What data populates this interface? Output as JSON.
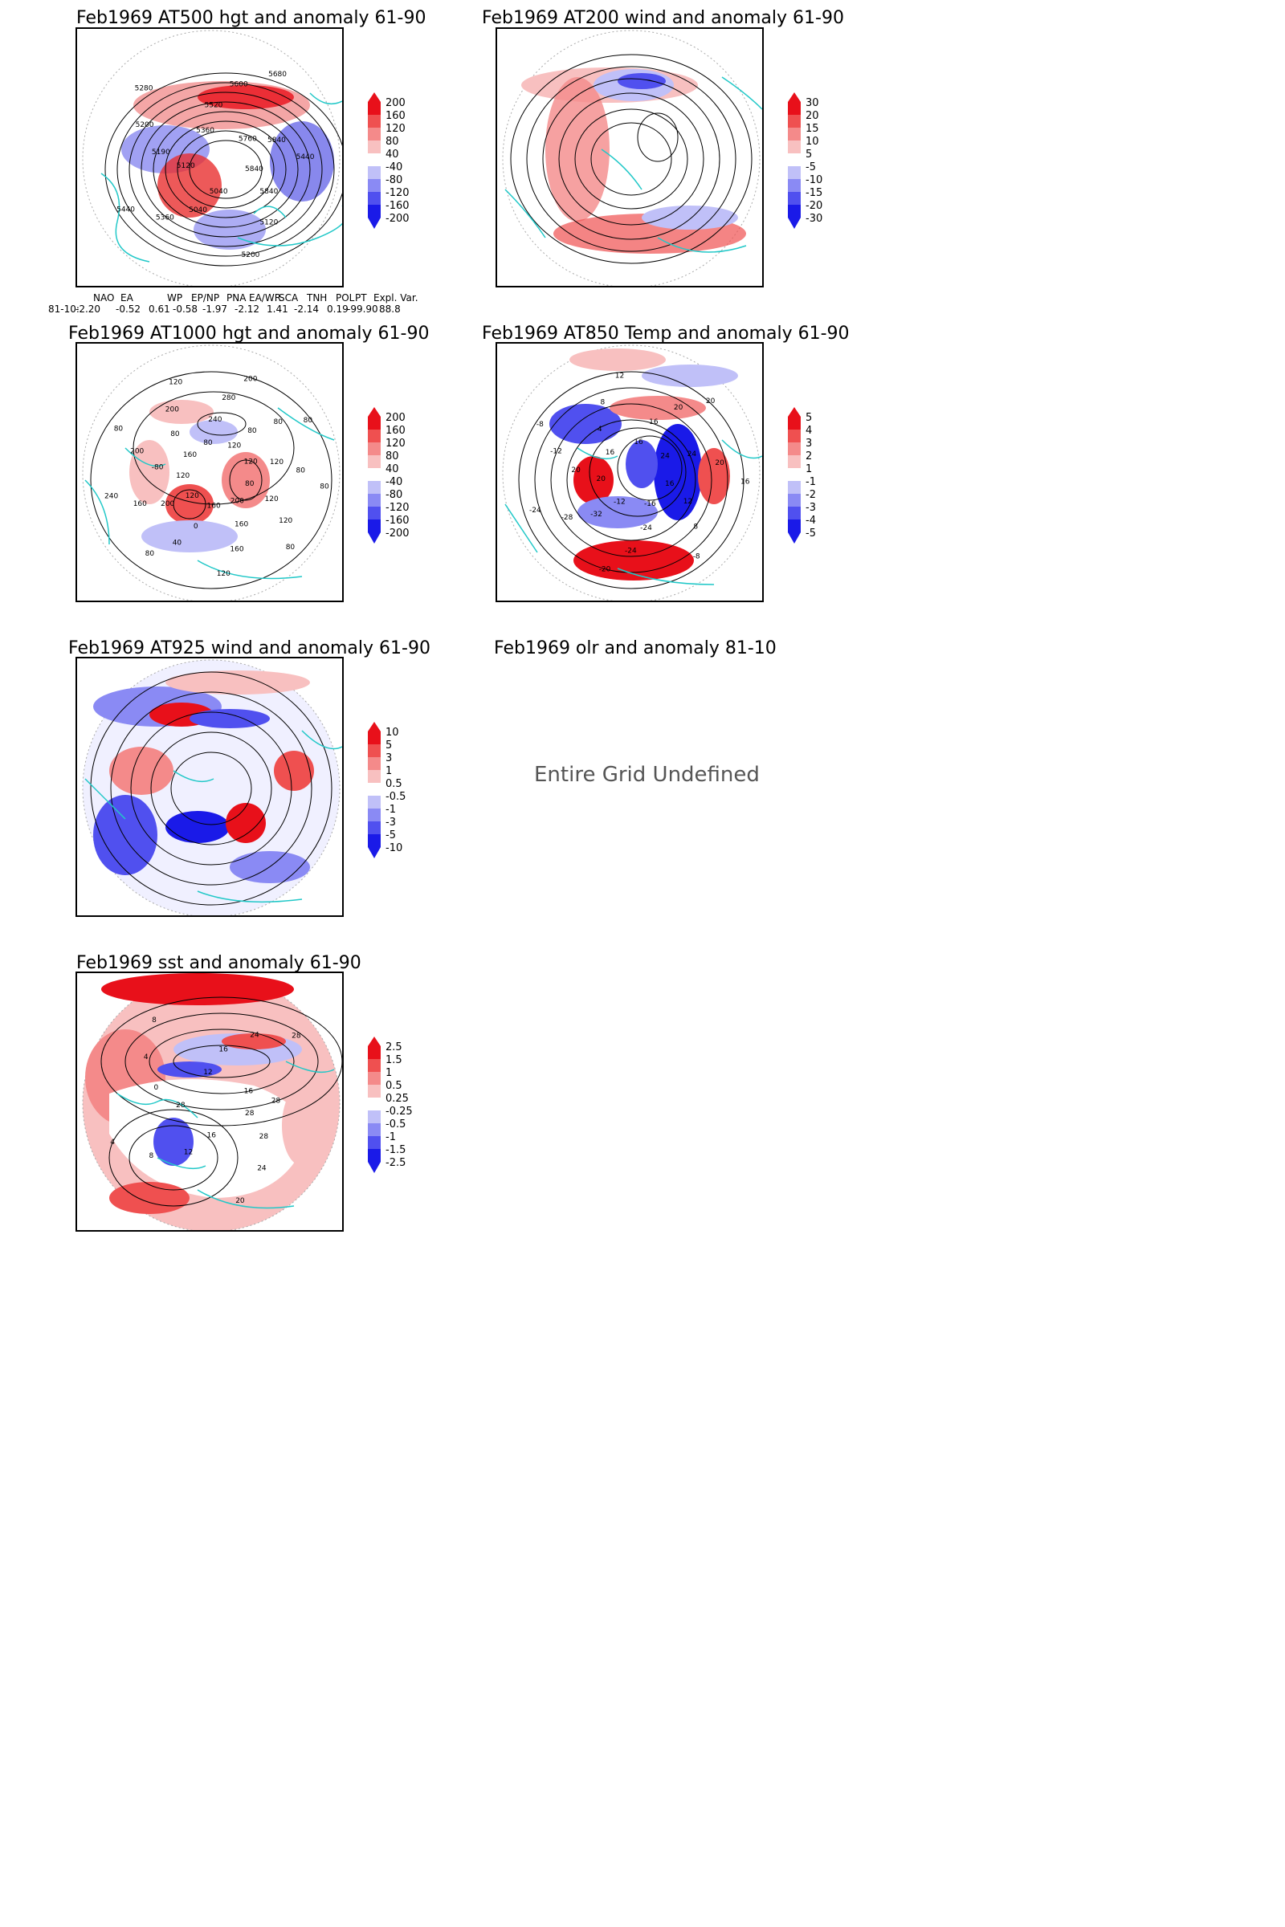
{
  "panels": [
    {
      "id": "p1",
      "title": "Feb1969 AT500 hgt and anomaly 61-90",
      "colorbar": [
        "200",
        "160",
        "120",
        "80",
        "40",
        "-40",
        "-80",
        "-120",
        "-160",
        "-200"
      ],
      "contour_labels": [
        "5840",
        "5840",
        "5120",
        "5200",
        "5040",
        "5040",
        "5360",
        "5440",
        "5120",
        "5190",
        "5200",
        "5280",
        "5360",
        "5520",
        "5600",
        "5680",
        "5760",
        "5840",
        "5440"
      ]
    },
    {
      "id": "p2",
      "title": "Feb1969 AT200 wind and anomaly 61-90",
      "colorbar": [
        "30",
        "20",
        "15",
        "10",
        "5",
        "-5",
        "-10",
        "-15",
        "-20",
        "-30"
      ],
      "contour_labels": []
    },
    {
      "id": "p3",
      "title": "Feb1969 AT1000 hgt and anomaly 61-90",
      "colorbar": [
        "200",
        "160",
        "120",
        "80",
        "40",
        "-40",
        "-80",
        "-120",
        "-160",
        "-200"
      ],
      "contour_labels": [
        "80",
        "120",
        "120",
        "80",
        "200",
        "160",
        "160",
        "120",
        "160",
        "0",
        "40",
        "80",
        "120",
        "200",
        "160",
        "240",
        "120",
        "-80",
        "200",
        "80",
        "160",
        "80",
        "200",
        "120",
        "80",
        "240",
        "280",
        "200",
        "120",
        "80",
        "80",
        "80",
        "120",
        "120",
        "80",
        "80"
      ]
    },
    {
      "id": "p4",
      "title": "Feb1969 AT850 Temp and anomaly 61-90",
      "colorbar": [
        "5",
        "4",
        "3",
        "2",
        "1",
        "-1",
        "-2",
        "-3",
        "-4",
        "-5"
      ],
      "contour_labels": [
        "16",
        "12",
        "8",
        "-8",
        "-16",
        "-24",
        "-24",
        "-20",
        "-12",
        "-32",
        "-28",
        "-24",
        "20",
        "20",
        "-12",
        "-8",
        "16",
        "4",
        "8",
        "12",
        "16",
        "16",
        "20",
        "20",
        "24",
        "24",
        "20",
        "16"
      ]
    },
    {
      "id": "p5",
      "title": "Feb1969 AT925 wind and anomaly 61-90",
      "colorbar": [
        "10",
        "5",
        "3",
        "1",
        "0.5",
        "-0.5",
        "-1",
        "-3",
        "-5",
        "-10"
      ],
      "contour_labels": []
    },
    {
      "id": "p6",
      "title": "Feb1969 olr and anomaly 81-10",
      "message": "Entire Grid Undefined"
    },
    {
      "id": "p7",
      "title": "Feb1969 sst and anomaly 61-90",
      "colorbar": [
        "2.5",
        "1.5",
        "1",
        "0.5",
        "0.25",
        "-0.25",
        "-0.5",
        "-1",
        "-1.5",
        "-2.5"
      ],
      "contour_labels": [
        "28",
        "28",
        "24",
        "20",
        "16",
        "12",
        "8",
        "4",
        "28",
        "0",
        "4",
        "8",
        "12",
        "16",
        "24",
        "28",
        "16",
        "28"
      ]
    }
  ],
  "indices": {
    "headers": [
      "NAO",
      "EA",
      "WP",
      "EP/NP",
      "PNA",
      "EA/WR",
      "SCA",
      "TNH",
      "POL",
      "PT",
      "Expl. Var."
    ],
    "row_label": "81-10:",
    "values": [
      "-2.20",
      "-0.52",
      "0.61",
      "-0.58",
      "-1.97",
      "-2.12",
      "1.41",
      "-2.14",
      "0.19",
      "-99.90",
      "88.8"
    ]
  },
  "colors": {
    "positive": "#e8101a",
    "negative": "#1a1ae8",
    "coast": "#22c8c8",
    "contour": "#000000"
  }
}
